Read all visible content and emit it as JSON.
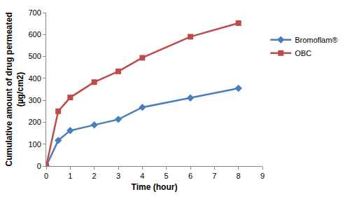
{
  "chart_data": {
    "type": "line",
    "x_label": "Time (hour)",
    "y_label": [
      "Cumulative amount of drug permeated",
      "(µg/cm2)"
    ],
    "x": [
      0,
      0.5,
      1,
      2,
      3,
      4,
      6,
      8
    ],
    "series": [
      {
        "name": "Bromoflam®",
        "color": "#4a7ebb",
        "marker": "diamond",
        "line_style": "solid",
        "values": [
          0,
          117,
          162,
          188,
          213,
          268,
          311,
          355
        ]
      },
      {
        "name": "OBC",
        "color": "#be4b48",
        "marker": "square",
        "line_style": "solid",
        "values": [
          0,
          250,
          313,
          383,
          432,
          494,
          590,
          652
        ]
      }
    ],
    "xlim": [
      0,
      9
    ],
    "xticks": [
      0,
      1,
      2,
      3,
      4,
      5,
      6,
      7,
      8,
      9
    ],
    "ylim": [
      0,
      700
    ],
    "yticks": [
      0,
      100,
      200,
      300,
      400,
      500,
      600,
      700
    ],
    "grid": false,
    "legend": "right"
  }
}
